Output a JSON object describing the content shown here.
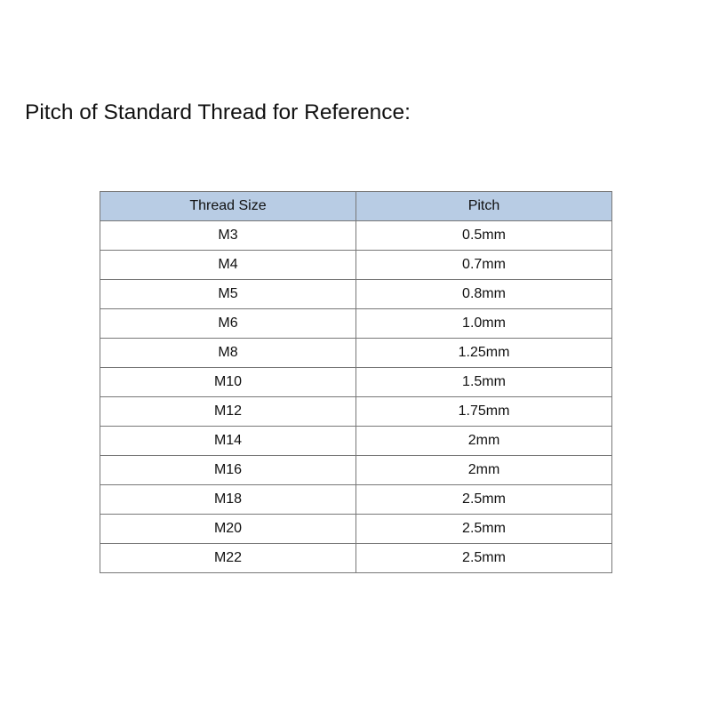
{
  "title": "Pitch of Standard Thread for Reference:",
  "table": {
    "headers": [
      "Thread Size",
      "Pitch"
    ],
    "header_color": "#b8cce4",
    "rows": [
      [
        "M3",
        "0.5mm"
      ],
      [
        "M4",
        "0.7mm"
      ],
      [
        "M5",
        "0.8mm"
      ],
      [
        "M6",
        "1.0mm"
      ],
      [
        "M8",
        "1.25mm"
      ],
      [
        "M10",
        "1.5mm"
      ],
      [
        "M12",
        "1.75mm"
      ],
      [
        "M14",
        "2mm"
      ],
      [
        "M16",
        "2mm"
      ],
      [
        "M18",
        "2.5mm"
      ],
      [
        "M20",
        "2.5mm"
      ],
      [
        "M22",
        "2.5mm"
      ]
    ]
  }
}
